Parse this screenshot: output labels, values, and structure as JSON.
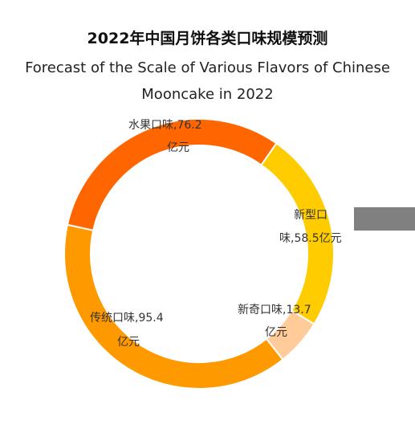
{
  "title": "2022年中国月饼各类口味规模预测",
  "subtitle": "Forecast of the Scale of Various Flavors of Chinese Mooncake in 2022",
  "chart_data": {
    "type": "pie",
    "donut": true,
    "unit": "亿元",
    "slices": [
      {
        "name": "新型口味",
        "value": 58.5,
        "color": "#FFCC00",
        "label_lines": [
          "新型口",
          "味,58.5亿元"
        ]
      },
      {
        "name": "新奇口味",
        "value": 13.7,
        "color": "#FFCC99",
        "label_lines": [
          "新奇口味,13.7",
          "亿元"
        ]
      },
      {
        "name": "传统口味",
        "value": 95.4,
        "color": "#FF9900",
        "label_lines": [
          "传统口味,95.4",
          "亿元"
        ]
      },
      {
        "name": "水果口味",
        "value": 76.2,
        "color": "#FF6600",
        "label_lines": [
          "水果口味,76.2",
          "亿元"
        ]
      }
    ]
  }
}
